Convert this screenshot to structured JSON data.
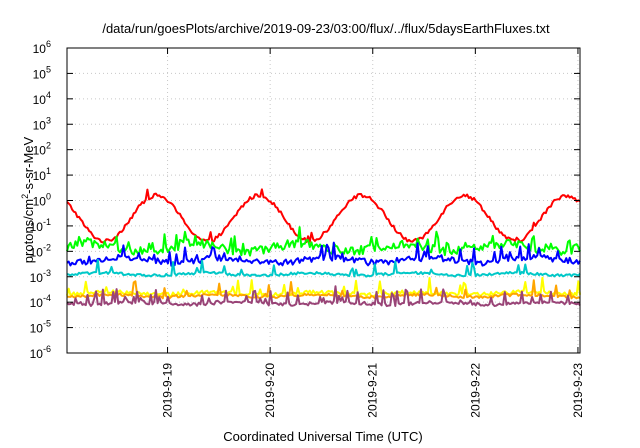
{
  "chart_data": {
    "type": "line",
    "title": "/data/run/goesPlots/archive/2019-09-23/03:00/flux/../flux/5daysEarthFluxes.txt",
    "xlabel": "Coordinated Universal Time (UTC)",
    "ylabel": "protons/cm²-s-sr-MeV",
    "ylabel_parts": {
      "before": "protons/cm",
      "sup": "2",
      "after": "-s-sr-MeV"
    },
    "yscale": "log",
    "ylim_exp": [
      -6,
      6
    ],
    "y_tick_base": "10",
    "y_tick_exponents": [
      "-6",
      "-5",
      "-4",
      "-3",
      "-2",
      "-1",
      "0",
      "1",
      "2",
      "3",
      "4",
      "5",
      "6"
    ],
    "x_axis_unit": "days",
    "xlim_days": [
      0,
      5
    ],
    "x_ticks": [
      {
        "label": "2019-9-19",
        "day": 0.98
      },
      {
        "label": "2019-9-20",
        "day": 1.98
      },
      {
        "label": "2019-9-21",
        "day": 2.98
      },
      {
        "label": "2019-9-22",
        "day": 3.98
      },
      {
        "label": "2019-9-23",
        "day": 4.98
      }
    ],
    "grid": true,
    "series": [
      {
        "color": "#ff0000",
        "base_log": -0.7,
        "amp": 0.9,
        "phase": 0.62,
        "noise": 0.15,
        "spikes": 0.05
      },
      {
        "color": "#00ff00",
        "base_log": -1.85,
        "amp": 0.15,
        "phase": 0.0,
        "noise": 0.35,
        "spikes": 0.18
      },
      {
        "color": "#0000ff",
        "base_log": -2.35,
        "amp": 0.1,
        "phase": 0.3,
        "noise": 0.25,
        "spikes": 0.12
      },
      {
        "color": "#00c8c8",
        "base_log": -2.9,
        "amp": 0.05,
        "phase": 0.1,
        "noise": 0.1,
        "spikes": 0.05
      },
      {
        "color": "#ffff00",
        "base_log": -3.65,
        "amp": 0.05,
        "phase": 0.2,
        "noise": 0.15,
        "spikes": 0.1
      },
      {
        "color": "#ffa500",
        "base_log": -3.75,
        "amp": 0.05,
        "phase": 0.2,
        "noise": 0.1,
        "spikes": 0.1
      },
      {
        "color": "#994477",
        "base_log": -4.05,
        "amp": 0.05,
        "phase": 0.4,
        "noise": 0.12,
        "spikes": 0.2
      }
    ]
  }
}
